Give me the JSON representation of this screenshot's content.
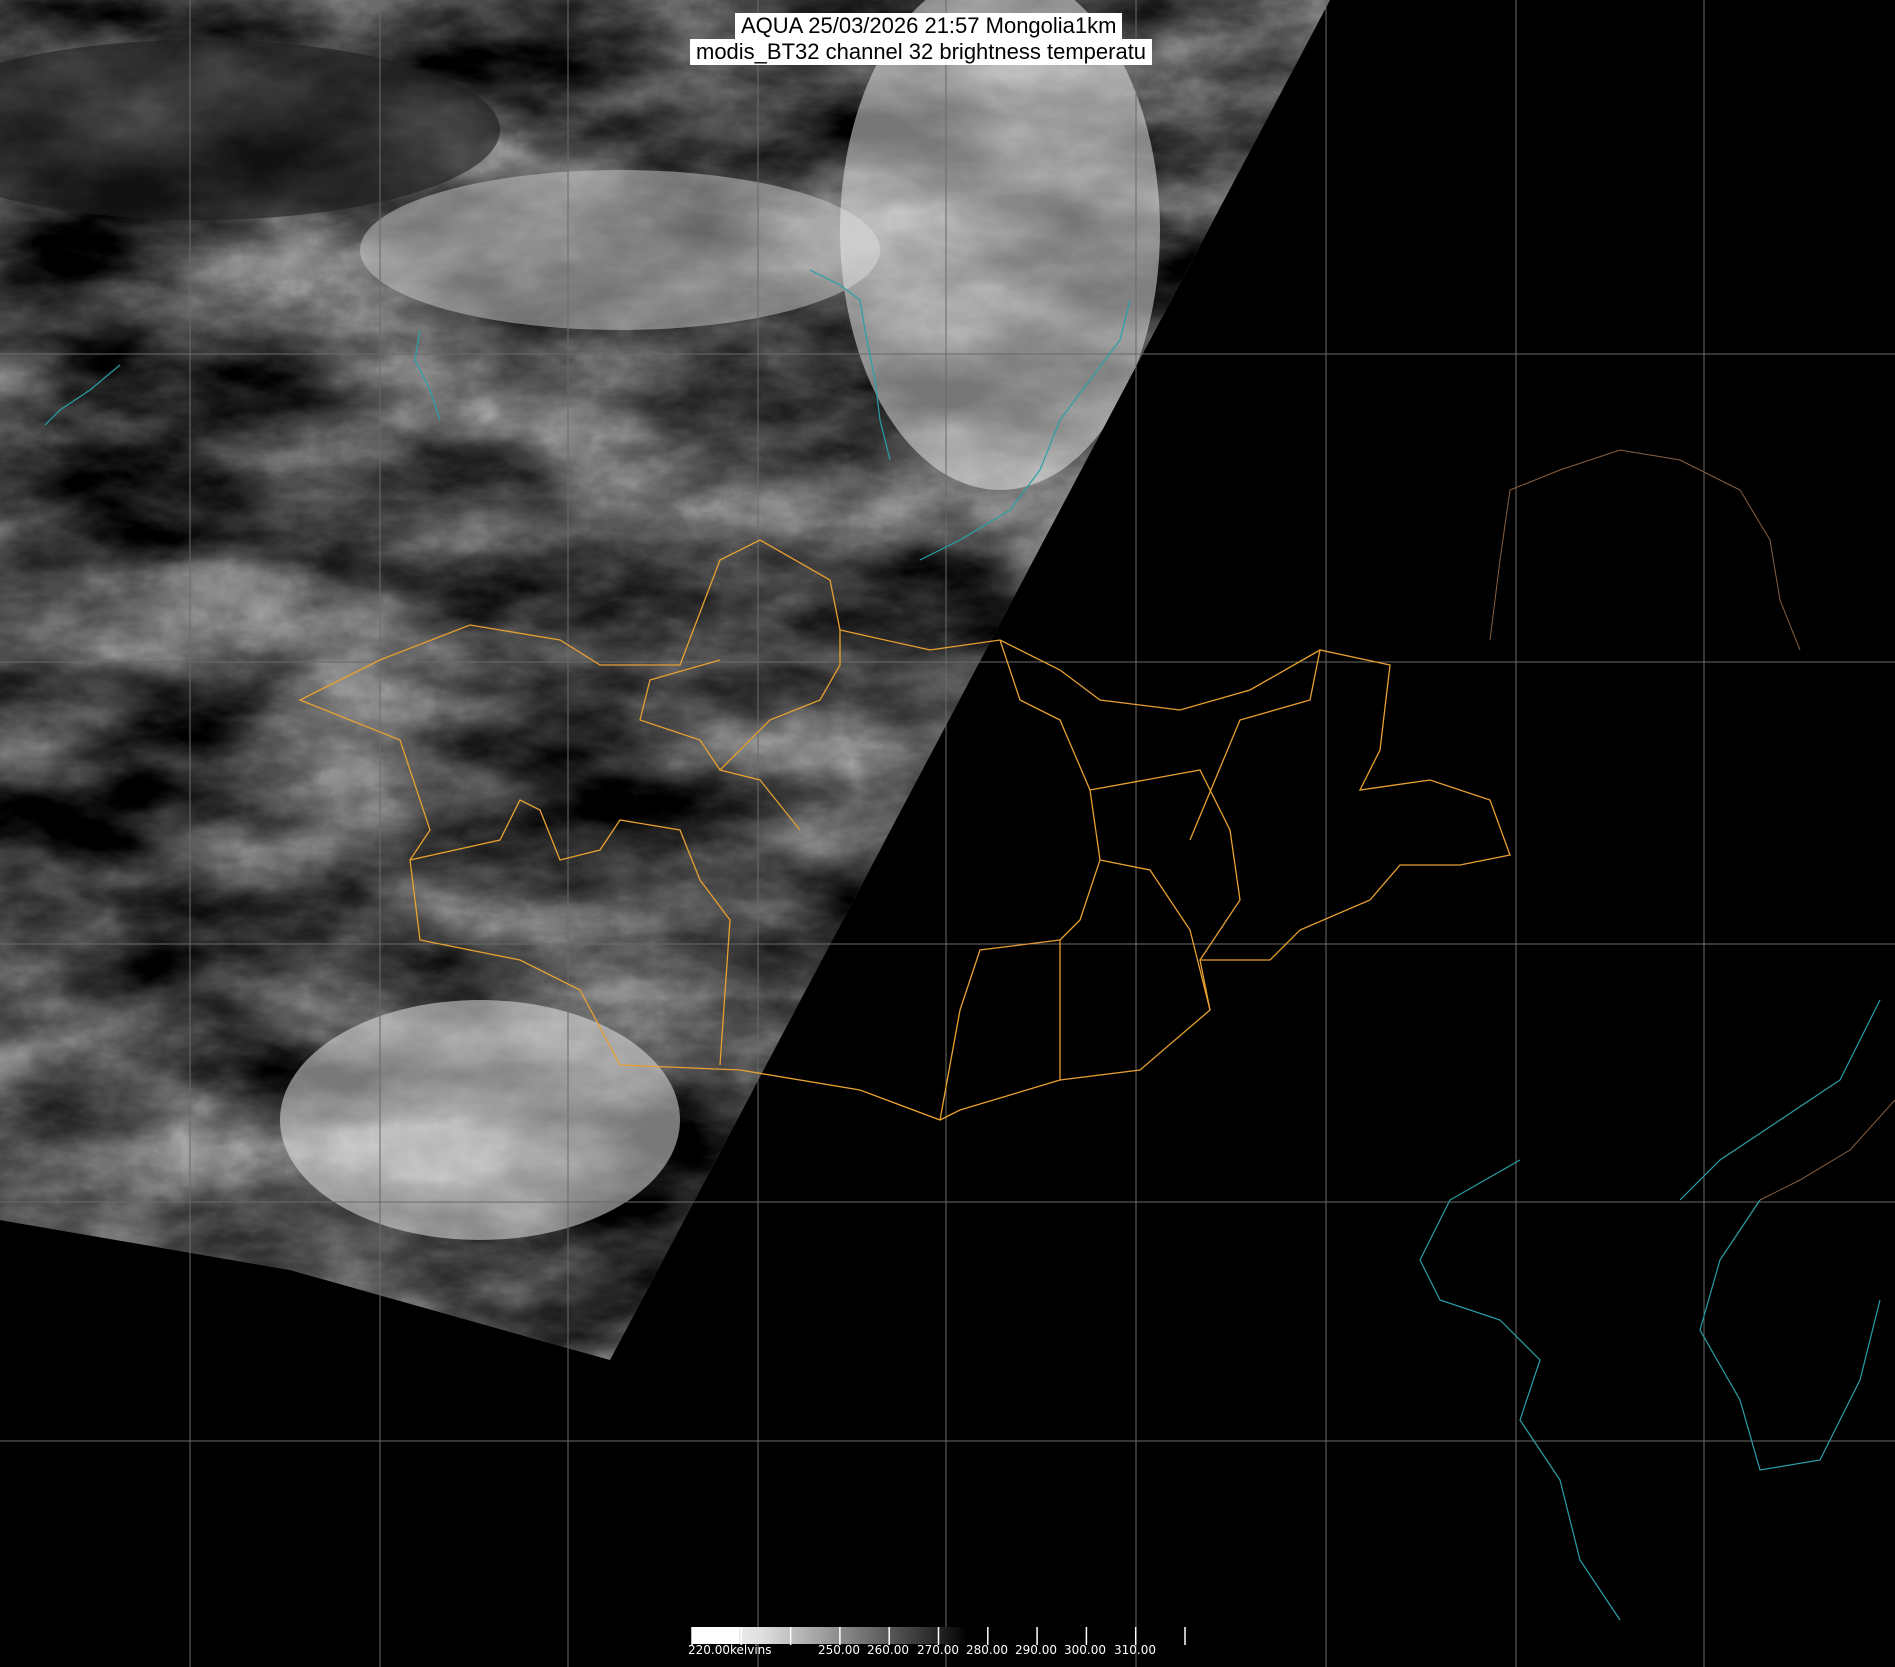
{
  "header": {
    "title_line1": "AQUA 25/03/2026 21:57 Mongolia1km",
    "title_line2": "modis_BT32 channel 32 brightness temperatu"
  },
  "colorbar": {
    "unit": "kelvins",
    "labels": [
      "220.00kelvins",
      "250.00",
      "260.00",
      "270.00",
      "280.00",
      "290.00",
      "300.00",
      "310.00"
    ],
    "ticks_k": [
      220,
      230,
      240,
      250,
      260,
      270,
      280,
      290,
      300,
      310,
      320
    ],
    "range_k": [
      220,
      320
    ],
    "colormap": "white (cold) to black (warm) grayscale"
  },
  "colors": {
    "admin_border": "#e8a030",
    "coastline": "#2aa0a8",
    "grid": "#6a6a6a",
    "background": "#000000"
  }
}
